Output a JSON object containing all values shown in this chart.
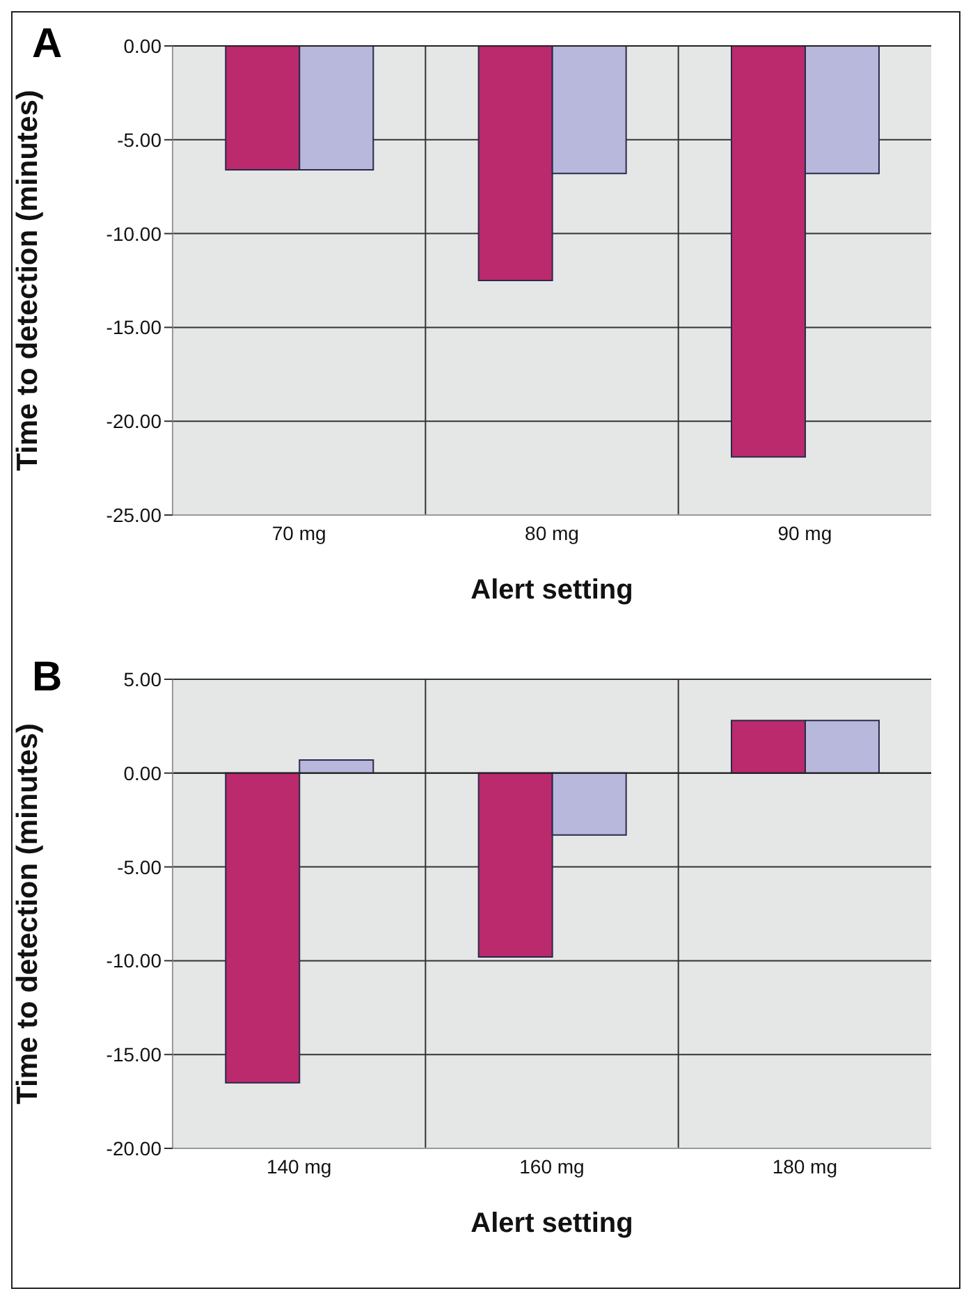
{
  "chart_data": [
    {
      "type": "bar",
      "title": "A",
      "xlabel": "Alert setting",
      "ylabel": "Time to detection (minutes)",
      "categories": [
        "70 mg",
        "80 mg",
        "90 mg"
      ],
      "series": [
        {
          "color": "#bb2a6c",
          "values": [
            -6.6,
            -12.5,
            -21.9
          ]
        },
        {
          "color": "#b8b8dc",
          "values": [
            -6.6,
            -6.8,
            -6.8
          ]
        }
      ],
      "ylim": [
        -25,
        0
      ],
      "yticks": [
        {
          "value": 0,
          "label": "0.00"
        },
        {
          "value": -5,
          "label": "-5.00"
        },
        {
          "value": -10,
          "label": "-10.00"
        },
        {
          "value": -15,
          "label": "-15.00"
        },
        {
          "value": -20,
          "label": "-20.00"
        },
        {
          "value": -25,
          "label": "-25.00"
        }
      ],
      "grid": true
    },
    {
      "type": "bar",
      "title": "B",
      "xlabel": "Alert setting",
      "ylabel": "Time to detection (minutes)",
      "categories": [
        "140 mg",
        "160 mg",
        "180 mg"
      ],
      "series": [
        {
          "color": "#bb2a6c",
          "values": [
            -16.5,
            -9.8,
            2.8
          ]
        },
        {
          "color": "#b8b8dc",
          "values": [
            0.7,
            -3.3,
            2.8
          ]
        }
      ],
      "ylim": [
        -20,
        5
      ],
      "yticks": [
        {
          "value": 5,
          "label": "5.00"
        },
        {
          "value": 0,
          "label": "0.00"
        },
        {
          "value": -5,
          "label": "-5.00"
        },
        {
          "value": -10,
          "label": "-10.00"
        },
        {
          "value": -15,
          "label": "-15.00"
        },
        {
          "value": -20,
          "label": "-20.00"
        }
      ],
      "grid": true
    }
  ]
}
